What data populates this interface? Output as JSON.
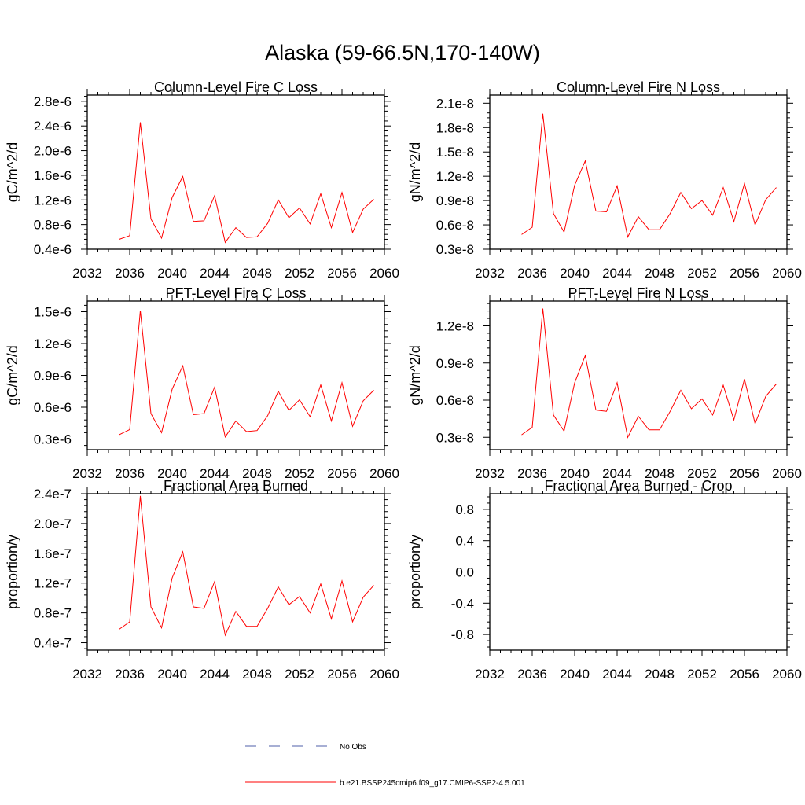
{
  "title": "Alaska (59-66.5N,170-140W)",
  "colors": {
    "model_line": "#ff0000",
    "obs_line": "#4f5fa8",
    "axis": "#000000"
  },
  "legend": [
    {
      "label": "No Obs",
      "style": "dashed",
      "color": "#4f5fa8"
    },
    {
      "label": "b.e21.BSSP245cmip6.f09_g17.CMIP6-SSP2-4.5.001",
      "style": "solid",
      "color": "#ff0000"
    }
  ],
  "chart_data": [
    {
      "type": "line",
      "title": "Column-Level Fire C Loss",
      "ylabel": "gC/m^2/d",
      "xlim": [
        2032,
        2060
      ],
      "xticks": [
        2032,
        2036,
        2040,
        2044,
        2048,
        2052,
        2056,
        2060
      ],
      "ylim": [
        4e-07,
        2.9e-06
      ],
      "yticks": [
        4e-07,
        8e-07,
        1.2e-06,
        1.6e-06,
        2e-06,
        2.4e-06,
        2.8e-06
      ],
      "yticklabels": [
        "0.4e-6",
        "0.8e-6",
        "1.2e-6",
        "1.6e-6",
        "2.0e-6",
        "2.4e-6",
        "2.8e-6"
      ],
      "x": [
        2035,
        2036,
        2037,
        2038,
        2039,
        2040,
        2041,
        2042,
        2043,
        2044,
        2045,
        2046,
        2047,
        2048,
        2049,
        2050,
        2051,
        2052,
        2053,
        2054,
        2055,
        2056,
        2057,
        2058,
        2059
      ],
      "series": [
        {
          "name": "b.e21.BSSP245cmip6.f09_g17.CMIP6-SSP2-4.5.001",
          "values": [
            5.6e-07,
            6.2e-07,
            2.46e-06,
            8.9e-07,
            5.8e-07,
            1.24e-06,
            1.58e-06,
            8.5e-07,
            8.6e-07,
            1.27e-06,
            5.1e-07,
            7.5e-07,
            5.9e-07,
            6e-07,
            8.2e-07,
            1.2e-06,
            9.1e-07,
            1.07e-06,
            8.1e-07,
            1.3e-06,
            7.5e-07,
            1.32e-06,
            6.7e-07,
            1.05e-06,
            1.21e-06
          ]
        }
      ]
    },
    {
      "type": "line",
      "title": "Column-Level Fire N Loss",
      "ylabel": "gN/m^2/d",
      "xlim": [
        2032,
        2060
      ],
      "xticks": [
        2032,
        2036,
        2040,
        2044,
        2048,
        2052,
        2056,
        2060
      ],
      "ylim": [
        3e-09,
        2.2e-08
      ],
      "yticks": [
        3e-09,
        6e-09,
        9e-09,
        1.2e-08,
        1.5e-08,
        1.8e-08,
        2.1e-08
      ],
      "yticklabels": [
        "0.3e-8",
        "0.6e-8",
        "0.9e-8",
        "1.2e-8",
        "1.5e-8",
        "1.8e-8",
        "2.1e-8"
      ],
      "x": [
        2035,
        2036,
        2037,
        2038,
        2039,
        2040,
        2041,
        2042,
        2043,
        2044,
        2045,
        2046,
        2047,
        2048,
        2049,
        2050,
        2051,
        2052,
        2053,
        2054,
        2055,
        2056,
        2057,
        2058,
        2059
      ],
      "series": [
        {
          "name": "b.e21.BSSP245cmip6.f09_g17.CMIP6-SSP2-4.5.001",
          "values": [
            4.8e-09,
            5.7e-09,
            1.97e-08,
            7.4e-09,
            5.1e-09,
            1.09e-08,
            1.39e-08,
            7.7e-09,
            7.6e-09,
            1.08e-08,
            4.5e-09,
            7e-09,
            5.4e-09,
            5.4e-09,
            7.4e-09,
            1e-08,
            8e-09,
            9e-09,
            7.2e-09,
            1.06e-08,
            6.4e-09,
            1.11e-08,
            6e-09,
            9.1e-09,
            1.06e-08
          ]
        }
      ]
    },
    {
      "type": "line",
      "title": "PFT-Level Fire C Loss",
      "ylabel": "gC/m^2/d",
      "xlim": [
        2032,
        2060
      ],
      "xticks": [
        2032,
        2036,
        2040,
        2044,
        2048,
        2052,
        2056,
        2060
      ],
      "ylim": [
        2e-07,
        1.6e-06
      ],
      "yticks": [
        3e-07,
        6e-07,
        9e-07,
        1.2e-06,
        1.5e-06
      ],
      "yticklabels": [
        "0.3e-6",
        "0.6e-6",
        "0.9e-6",
        "1.2e-6",
        "1.5e-6"
      ],
      "x": [
        2035,
        2036,
        2037,
        2038,
        2039,
        2040,
        2041,
        2042,
        2043,
        2044,
        2045,
        2046,
        2047,
        2048,
        2049,
        2050,
        2051,
        2052,
        2053,
        2054,
        2055,
        2056,
        2057,
        2058,
        2059
      ],
      "series": [
        {
          "name": "b.e21.BSSP245cmip6.f09_g17.CMIP6-SSP2-4.5.001",
          "values": [
            3.4e-07,
            3.9e-07,
            1.51e-06,
            5.4e-07,
            3.6e-07,
            7.7e-07,
            9.9e-07,
            5.3e-07,
            5.4e-07,
            7.9e-07,
            3.2e-07,
            4.7e-07,
            3.7e-07,
            3.8e-07,
            5.2e-07,
            7.5e-07,
            5.7e-07,
            6.7e-07,
            5.1e-07,
            8.1e-07,
            4.7e-07,
            8.3e-07,
            4.2e-07,
            6.6e-07,
            7.6e-07
          ]
        }
      ]
    },
    {
      "type": "line",
      "title": "PFT-Level Fire N Loss",
      "ylabel": "gN/m^2/d",
      "xlim": [
        2032,
        2060
      ],
      "xticks": [
        2032,
        2036,
        2040,
        2044,
        2048,
        2052,
        2056,
        2060
      ],
      "ylim": [
        2e-09,
        1.4e-08
      ],
      "yticks": [
        3e-09,
        6e-09,
        9e-09,
        1.2e-08
      ],
      "yticklabels": [
        "0.3e-8",
        "0.6e-8",
        "0.9e-8",
        "1.2e-8"
      ],
      "x": [
        2035,
        2036,
        2037,
        2038,
        2039,
        2040,
        2041,
        2042,
        2043,
        2044,
        2045,
        2046,
        2047,
        2048,
        2049,
        2050,
        2051,
        2052,
        2053,
        2054,
        2055,
        2056,
        2057,
        2058,
        2059
      ],
      "series": [
        {
          "name": "b.e21.BSSP245cmip6.f09_g17.CMIP6-SSP2-4.5.001",
          "values": [
            3.2e-09,
            3.8e-09,
            1.34e-08,
            4.8e-09,
            3.5e-09,
            7.4e-09,
            9.6e-09,
            5.2e-09,
            5.1e-09,
            7.4e-09,
            3e-09,
            4.7e-09,
            3.6e-09,
            3.6e-09,
            5.1e-09,
            6.8e-09,
            5.3e-09,
            6.1e-09,
            4.8e-09,
            7.2e-09,
            4.4e-09,
            7.7e-09,
            4.1e-09,
            6.3e-09,
            7.3e-09
          ]
        }
      ]
    },
    {
      "type": "line",
      "title": "Fractional Area Burned",
      "ylabel": "proportion/y",
      "xlim": [
        2032,
        2060
      ],
      "xticks": [
        2032,
        2036,
        2040,
        2044,
        2048,
        2052,
        2056,
        2060
      ],
      "ylim": [
        3e-08,
        2.4e-07
      ],
      "yticks": [
        4e-08,
        8e-08,
        1.2e-07,
        1.6e-07,
        2e-07,
        2.4e-07
      ],
      "yticklabels": [
        "0.4e-7",
        "0.8e-7",
        "1.2e-7",
        "1.6e-7",
        "2.0e-7",
        "2.4e-7"
      ],
      "x": [
        2035,
        2036,
        2037,
        2038,
        2039,
        2040,
        2041,
        2042,
        2043,
        2044,
        2045,
        2046,
        2047,
        2048,
        2049,
        2050,
        2051,
        2052,
        2053,
        2054,
        2055,
        2056,
        2057,
        2058,
        2059
      ],
      "series": [
        {
          "name": "b.e21.BSSP245cmip6.f09_g17.CMIP6-SSP2-4.5.001",
          "values": [
            5.8e-08,
            6.8e-08,
            2.37e-07,
            8.8e-08,
            6e-08,
            1.27e-07,
            1.62e-07,
            8.8e-08,
            8.6e-08,
            1.22e-07,
            5e-08,
            8.2e-08,
            6.2e-08,
            6.2e-08,
            8.6e-08,
            1.15e-07,
            9.1e-08,
            1.02e-07,
            8e-08,
            1.19e-07,
            7.2e-08,
            1.23e-07,
            6.8e-08,
            1.01e-07,
            1.17e-07
          ]
        }
      ]
    },
    {
      "type": "line",
      "title": "Fractional Area Burned - Crop",
      "ylabel": "proportion/y",
      "xlim": [
        2032,
        2060
      ],
      "xticks": [
        2032,
        2036,
        2040,
        2044,
        2048,
        2052,
        2056,
        2060
      ],
      "ylim": [
        -1.0,
        1.0
      ],
      "yticks": [
        -0.8,
        -0.4,
        0.0,
        0.4,
        0.8
      ],
      "yticklabels": [
        "-0.8",
        "-0.4",
        "0.0",
        "0.4",
        "0.8"
      ],
      "x": [
        2035,
        2036,
        2037,
        2038,
        2039,
        2040,
        2041,
        2042,
        2043,
        2044,
        2045,
        2046,
        2047,
        2048,
        2049,
        2050,
        2051,
        2052,
        2053,
        2054,
        2055,
        2056,
        2057,
        2058,
        2059
      ],
      "series": [
        {
          "name": "b.e21.BSSP245cmip6.f09_g17.CMIP6-SSP2-4.5.001",
          "values": [
            0,
            0,
            0,
            0,
            0,
            0,
            0,
            0,
            0,
            0,
            0,
            0,
            0,
            0,
            0,
            0,
            0,
            0,
            0,
            0,
            0,
            0,
            0,
            0,
            0
          ]
        }
      ]
    }
  ]
}
